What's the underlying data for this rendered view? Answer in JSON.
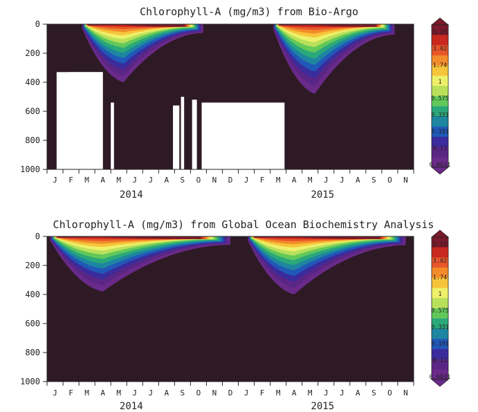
{
  "chart_data": [
    {
      "type": "heatmap",
      "title": "Chlorophyll-A (mg/m3) from Bio-Argo",
      "x_month_labels": [
        "J",
        "F",
        "M",
        "A",
        "M",
        "J",
        "J",
        "A",
        "S",
        "O",
        "N",
        "D",
        "J",
        "F",
        "M",
        "A",
        "M",
        "J",
        "J",
        "A",
        "S",
        "O",
        "N"
      ],
      "year_labels": [
        "2014",
        "2015"
      ],
      "y_ticks": [
        0,
        200,
        400,
        600,
        800,
        1000
      ],
      "ylim": [
        1000,
        0
      ],
      "colorbar_labels": [
        "5.25",
        "3.02",
        "1.74",
        "1",
        "0.575",
        "0.331",
        "0.191",
        "0.11",
        "0.0631"
      ],
      "colorbar_colors": [
        "#7a1a2a",
        "#c8281e",
        "#e8562a",
        "#f28c2a",
        "#f6c43a",
        "#eef06a",
        "#b8e05a",
        "#62c85a",
        "#2aa87a",
        "#1e86a0",
        "#2058b8",
        "#3a2c9c",
        "#5a2686",
        "#6a2a8a"
      ],
      "background_color": "#2e1a25",
      "no_data_color": "#ffffff",
      "bloom_peaks": [
        {
          "year": "2014",
          "start_month": 2.2,
          "peak_month": 4.8,
          "end_month": 9.8,
          "max_depth_m": 400
        },
        {
          "year": "2015",
          "start_month": 14.2,
          "peak_month": 16.8,
          "end_month": 21.8,
          "max_depth_m": 480
        }
      ]
    },
    {
      "type": "heatmap",
      "title": "Chlorophyll-A (mg/m3) from Global Ocean Biochemistry Analysis",
      "x_month_labels": [
        "J",
        "F",
        "M",
        "A",
        "M",
        "J",
        "J",
        "A",
        "S",
        "O",
        "N",
        "D",
        "J",
        "F",
        "M",
        "A",
        "M",
        "J",
        "J",
        "A",
        "S",
        "O",
        "N"
      ],
      "year_labels": [
        "2014",
        "2015"
      ],
      "y_ticks": [
        0,
        200,
        400,
        600,
        800,
        1000
      ],
      "ylim": [
        1000,
        0
      ],
      "colorbar_labels": [
        "5.25",
        "3.02",
        "1.74",
        "1",
        "0.575",
        "0.331",
        "0.191",
        "0.11",
        "0.0631"
      ],
      "colorbar_colors": [
        "#7a1a2a",
        "#c8281e",
        "#e8562a",
        "#f28c2a",
        "#f6c43a",
        "#eef06a",
        "#b8e05a",
        "#62c85a",
        "#2aa87a",
        "#1e86a0",
        "#2058b8",
        "#3a2c9c",
        "#5a2686",
        "#6a2a8a"
      ],
      "background_color": "#2e1a25",
      "bloom_peaks": [
        {
          "year": "2014",
          "start_month": 0.2,
          "peak_month": 3.5,
          "end_month": 11.5,
          "max_depth_m": 380
        },
        {
          "year": "2015",
          "start_month": 12.6,
          "peak_month": 15.5,
          "end_month": 22.5,
          "max_depth_m": 400
        }
      ]
    }
  ]
}
